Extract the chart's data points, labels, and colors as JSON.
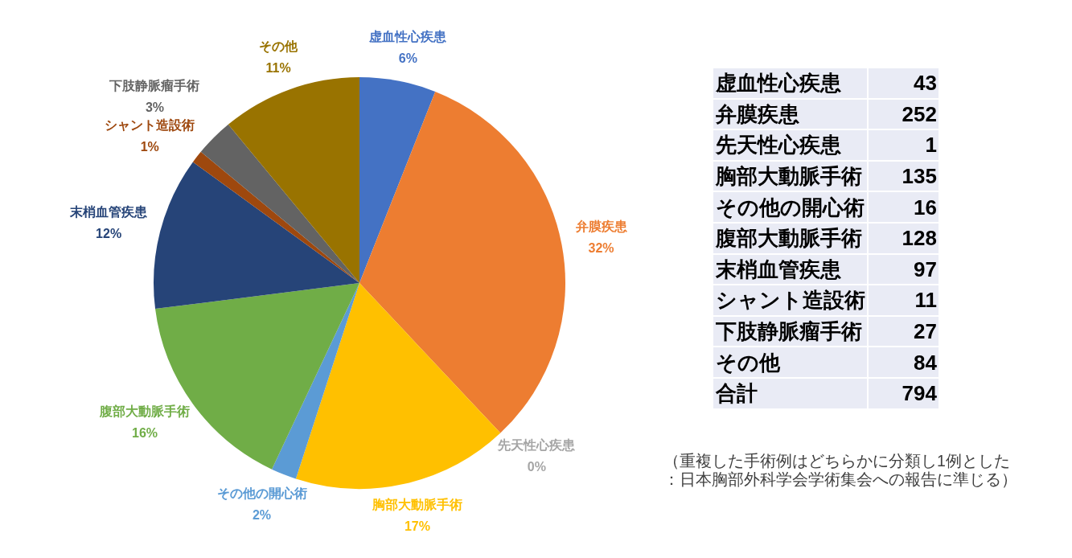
{
  "chart_data": [
    {
      "type": "pie",
      "categories": [
        "虚血性心疾患",
        "弁膜疾患",
        "先天性心疾患",
        "胸部大動脈手術",
        "その他の開心術",
        "腹部大動脈手術",
        "末梢血管疾患",
        "シャント造設術",
        "下肢静脈瘤手術",
        "その他"
      ],
      "values": [
        6,
        32,
        0,
        17,
        2,
        16,
        12,
        1,
        3,
        11
      ],
      "colors": [
        "#4472c4",
        "#ed7d31",
        "#a5a5a5",
        "#ffc000",
        "#5b9bd5",
        "#70ad47",
        "#264478",
        "#9e480e",
        "#636363",
        "#997300"
      ],
      "value_labels": [
        "6%",
        "32%",
        "0%",
        "17%",
        "2%",
        "16%",
        "12%",
        "1%",
        "3%",
        "11%"
      ]
    },
    {
      "type": "other",
      "categories": [
        "虚血性心疾患",
        "弁膜疾患",
        "先天性心疾患",
        "胸部大動脈手術",
        "その他の開心術",
        "腹部大動脈手術",
        "末梢血管疾患",
        "シャント造設術",
        "下肢静脈瘤手術",
        "その他",
        "合計"
      ],
      "values": [
        43,
        252,
        1,
        135,
        16,
        128,
        97,
        11,
        27,
        84,
        794
      ],
      "data_labels": true,
      "annotations": [
        "（重複した手術例はどちらかに分類し1例とした：日本胸部外科学会学術集会への報告に準じる）"
      ]
    }
  ]
}
